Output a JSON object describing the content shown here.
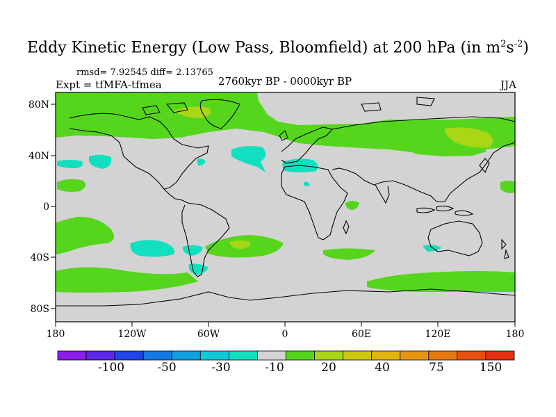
{
  "title": {
    "main": "Eddy Kinetic Energy (Low Pass, Bloomfield) at 200 hPa (in m",
    "sup1": "2",
    "mid": "s",
    "sup2": "-2",
    "end": ")"
  },
  "stats": {
    "text": "rmsd= 7.92545 diff= 2.13765"
  },
  "expt": {
    "text": "Expt = tfMFA-tfmea"
  },
  "period": {
    "text": "2760kyr BP - 0000kyr BP"
  },
  "season": {
    "text": "JJA"
  },
  "map": {
    "lat_labels": [
      "80N",
      "40N",
      "0",
      "40S",
      "80S"
    ],
    "lon_labels": [
      "180",
      "120W",
      "60W",
      "0",
      "60E",
      "120E",
      "180"
    ],
    "background_color": "#d3d3d3",
    "colors": {
      "neg_10": "#10e0c0",
      "pos_20": "#55d61c",
      "pos_30": "#a9d615"
    }
  },
  "colorbar": {
    "colors": [
      "#8a1ee6",
      "#5a28e6",
      "#2046e6",
      "#1478e6",
      "#10a0e0",
      "#10c8d8",
      "#10e0c0",
      "#d3d3d3",
      "#55d61c",
      "#a9d615",
      "#d0c810",
      "#e0b410",
      "#e89610",
      "#e87810",
      "#e85010",
      "#e63010"
    ],
    "labels": [
      "-100",
      "-50",
      "-30",
      "-10",
      "20",
      "40",
      "75",
      "150"
    ]
  }
}
